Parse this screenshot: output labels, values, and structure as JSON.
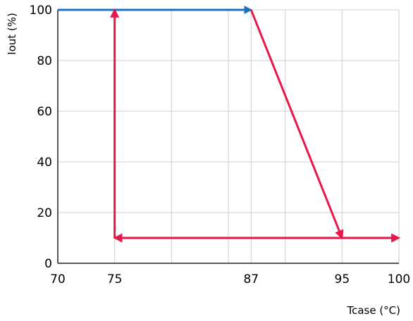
{
  "chart_data": {
    "type": "line",
    "xlabel": "Tcase (°C)",
    "ylabel": "Iout (%)",
    "xlim": [
      70,
      100
    ],
    "ylim": [
      0,
      100
    ],
    "x_ticks": [
      70,
      75,
      87,
      95,
      100
    ],
    "y_ticks": [
      0,
      20,
      40,
      60,
      80,
      100
    ],
    "x_gridlines": [
      70,
      75,
      80,
      85,
      87,
      90,
      95,
      100
    ],
    "y_gridlines": [
      0,
      20,
      40,
      60,
      80,
      100
    ],
    "grid": true,
    "series": [
      {
        "color": "#1f6fc0",
        "arrow": "end",
        "points": [
          [
            70,
            100
          ],
          [
            87,
            100
          ]
        ]
      },
      {
        "color": "#e8174a",
        "arrow": "end",
        "points": [
          [
            87,
            100
          ],
          [
            95,
            10
          ]
        ]
      },
      {
        "color": "#e8174a",
        "arrow": "end",
        "points": [
          [
            95,
            10
          ],
          [
            100,
            10
          ]
        ]
      },
      {
        "color": "#e8174a",
        "arrow": "end",
        "points": [
          [
            95,
            10
          ],
          [
            75,
            10
          ]
        ]
      },
      {
        "color": "#e8174a",
        "arrow": "end",
        "points": [
          [
            75,
            10
          ],
          [
            75,
            100
          ]
        ]
      }
    ]
  }
}
